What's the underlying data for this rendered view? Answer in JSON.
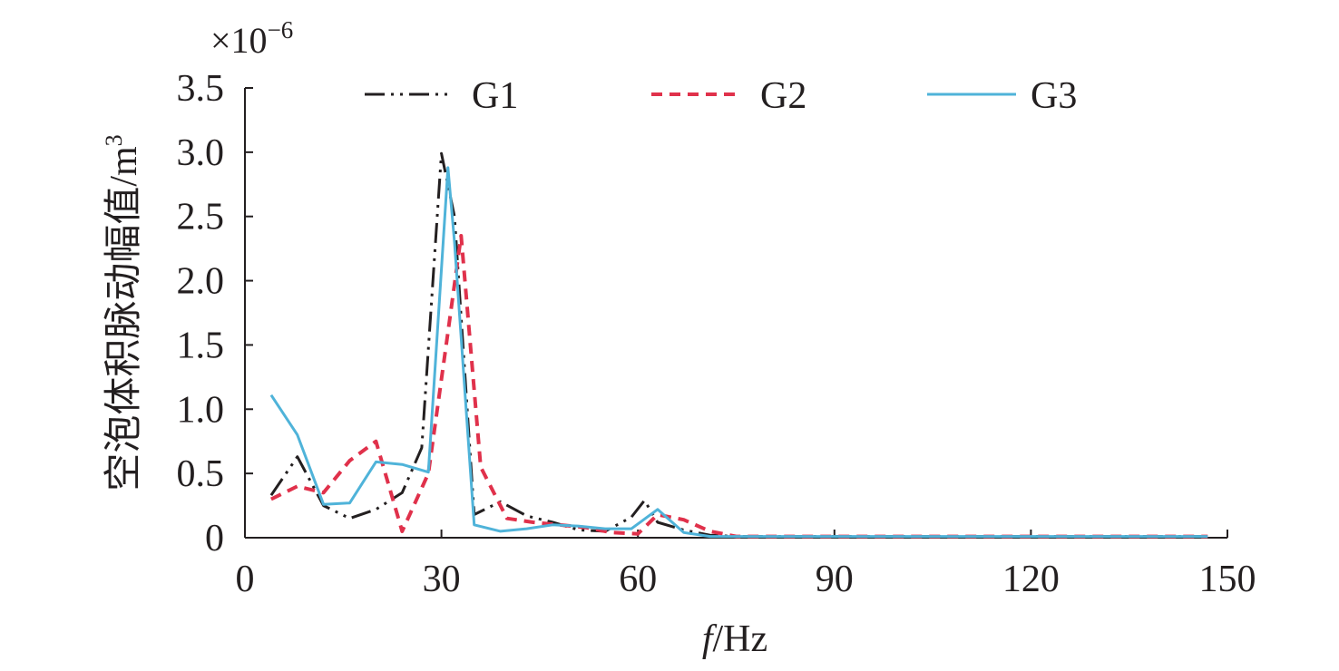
{
  "chart_data": {
    "type": "line",
    "title": "",
    "xlabel_italic": "f",
    "xlabel_rest": "/Hz",
    "ylabel_main": "空泡体积脉动幅值/m",
    "ylabel_sup": "3",
    "multiplier_base": "×10",
    "multiplier_exp": "−6",
    "xlim": [
      0,
      150
    ],
    "ylim": [
      0,
      3.5
    ],
    "xticks": [
      0,
      30,
      60,
      90,
      120,
      150
    ],
    "xtick_labels": [
      "0",
      "30",
      "60",
      "90",
      "120",
      "150"
    ],
    "yticks": [
      0,
      0.5,
      1.0,
      1.5,
      2.0,
      2.5,
      3.0,
      3.5
    ],
    "ytick_labels": [
      "0",
      "0.5",
      "1.0",
      "1.5",
      "2.0",
      "2.5",
      "3.0",
      "3.5"
    ],
    "grid": false,
    "legend_position": "top",
    "series": [
      {
        "name": "G1",
        "color": "#231f20",
        "dash": "22,7,3,7,3,7",
        "width": 3,
        "x": [
          4,
          8,
          12,
          16,
          20,
          24,
          27,
          30,
          32,
          35,
          39,
          43,
          47,
          51,
          55,
          59,
          61,
          63,
          67,
          71,
          75,
          80,
          90,
          100,
          110,
          120,
          130,
          140,
          147
        ],
        "y": [
          0.33,
          0.63,
          0.25,
          0.15,
          0.22,
          0.35,
          0.7,
          2.99,
          2.5,
          0.18,
          0.28,
          0.17,
          0.12,
          0.06,
          0.05,
          0.16,
          0.29,
          0.12,
          0.06,
          0.02,
          0.01,
          0.01,
          0.01,
          0.01,
          0.01,
          0.01,
          0.01,
          0.01,
          0.01
        ]
      },
      {
        "name": "G2",
        "color": "#e0314b",
        "dash": "12,8",
        "width": 4,
        "x": [
          4,
          8,
          12,
          16,
          20,
          24,
          28,
          31,
          33,
          36,
          40,
          44,
          48,
          52,
          56,
          60,
          63,
          67,
          71,
          75,
          80,
          90,
          100,
          110,
          120,
          130,
          140,
          147
        ],
        "y": [
          0.3,
          0.4,
          0.35,
          0.6,
          0.75,
          0.05,
          0.5,
          1.6,
          2.35,
          0.55,
          0.15,
          0.12,
          0.1,
          0.08,
          0.04,
          0.03,
          0.18,
          0.14,
          0.05,
          0.01,
          0.01,
          0.01,
          0.01,
          0.01,
          0.01,
          0.01,
          0.01,
          0.01
        ]
      },
      {
        "name": "G3",
        "color": "#4fb3d9",
        "dash": "",
        "width": 3,
        "x": [
          4,
          8,
          12,
          16,
          20,
          24,
          28,
          31,
          32,
          35,
          39,
          43,
          47,
          51,
          55,
          59,
          63,
          67,
          71,
          75,
          80,
          90,
          100,
          110,
          120,
          130,
          140,
          147
        ],
        "y": [
          1.11,
          0.8,
          0.26,
          0.27,
          0.59,
          0.57,
          0.51,
          2.88,
          2.3,
          0.1,
          0.05,
          0.07,
          0.1,
          0.09,
          0.07,
          0.07,
          0.22,
          0.04,
          0.01,
          0.01,
          0.01,
          0.01,
          0.01,
          0.01,
          0.01,
          0.01,
          0.01,
          0.01
        ]
      }
    ]
  }
}
